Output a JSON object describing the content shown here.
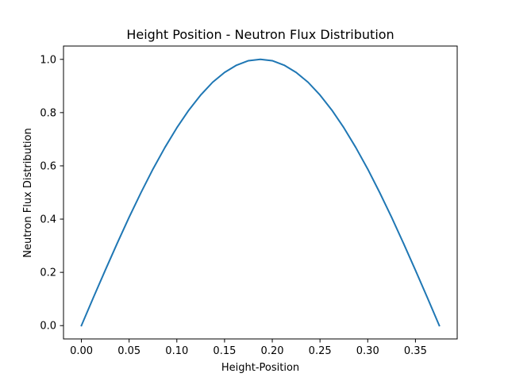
{
  "chart_data": {
    "type": "line",
    "title": "Height Position - Neutron Flux Distribution",
    "xlabel": "Height-Position",
    "ylabel": "Neutron Flux Distribution",
    "xlim": [
      -0.01875,
      0.39375
    ],
    "ylim": [
      -0.05,
      1.05
    ],
    "xticks": [
      0.0,
      0.05,
      0.1,
      0.15,
      0.2,
      0.25,
      0.3,
      0.35
    ],
    "xtick_labels": [
      "0.00",
      "0.05",
      "0.10",
      "0.15",
      "0.20",
      "0.25",
      "0.30",
      "0.35"
    ],
    "yticks": [
      0.0,
      0.2,
      0.4,
      0.6,
      0.8,
      1.0
    ],
    "ytick_labels": [
      "0.0",
      "0.2",
      "0.4",
      "0.6",
      "0.8",
      "1.0"
    ],
    "grid": false,
    "legend": "none",
    "series": [
      {
        "color": "#1f77b4",
        "x": [
          0.0,
          0.0125,
          0.025,
          0.0375,
          0.05,
          0.0625,
          0.075,
          0.0875,
          0.1,
          0.1125,
          0.125,
          0.1375,
          0.15,
          0.1625,
          0.175,
          0.1875,
          0.2,
          0.2125,
          0.225,
          0.2375,
          0.25,
          0.2625,
          0.275,
          0.2875,
          0.3,
          0.3125,
          0.325,
          0.3375,
          0.35,
          0.3625,
          0.375
        ],
        "y": [
          0.0,
          0.105,
          0.208,
          0.309,
          0.407,
          0.5,
          0.588,
          0.669,
          0.743,
          0.809,
          0.866,
          0.914,
          0.951,
          0.978,
          0.995,
          1.0,
          0.995,
          0.978,
          0.951,
          0.914,
          0.866,
          0.809,
          0.743,
          0.669,
          0.588,
          0.5,
          0.407,
          0.309,
          0.208,
          0.105,
          0.0
        ]
      }
    ]
  }
}
